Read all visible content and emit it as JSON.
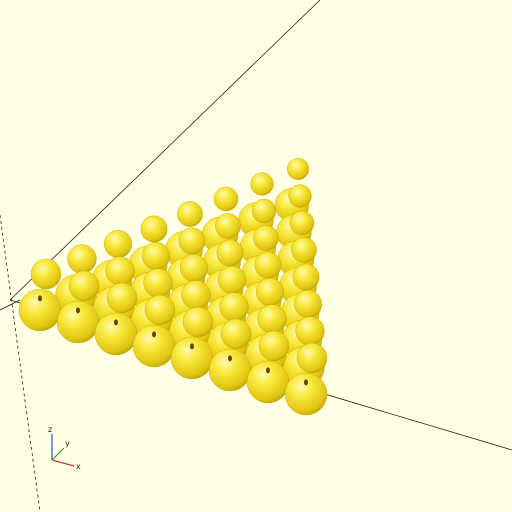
{
  "viewport": {
    "background": "#ffffe5",
    "model_color": "#f7e43a",
    "model_shade": "#c9a800"
  },
  "axes": {
    "x_label": "x",
    "y_label": "y",
    "z_label": "z",
    "x_color": "#e03030",
    "y_color": "#30a030",
    "z_color": "#3050d0"
  },
  "model": {
    "shape": "sphere-grid",
    "arrangement": "triangular",
    "rows": 8,
    "layers": 2
  }
}
